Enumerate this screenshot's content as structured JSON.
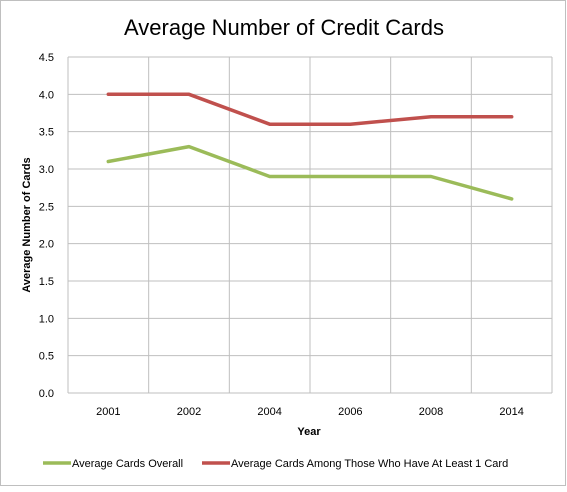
{
  "chart_data": {
    "type": "line",
    "title": "Average Number of Credit Cards",
    "xlabel": "Year",
    "ylabel": "Average Number of Cards",
    "categories": [
      "2001",
      "2002",
      "2004",
      "2006",
      "2008",
      "2014"
    ],
    "ylim": [
      0,
      4.5
    ],
    "yticks": [
      "0.0",
      "0.5",
      "1.0",
      "1.5",
      "2.0",
      "2.5",
      "3.0",
      "3.5",
      "4.0",
      "4.5"
    ],
    "grid": true,
    "legend_position": "bottom",
    "series": [
      {
        "name": "Average Cards Overall",
        "values": [
          3.1,
          3.3,
          2.9,
          2.9,
          2.9,
          2.6
        ],
        "color": "#9bbb59"
      },
      {
        "name": "Average Cards Among Those Who Have At Least 1 Card",
        "values": [
          4.0,
          4.0,
          3.6,
          3.6,
          3.7,
          3.7
        ],
        "color": "#c0504d"
      }
    ]
  }
}
